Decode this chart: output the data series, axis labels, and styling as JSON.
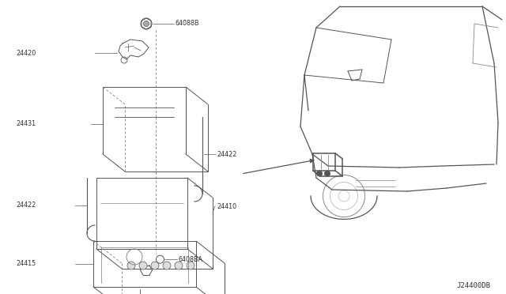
{
  "bg_color": "#ffffff",
  "line_color": "#555555",
  "text_color": "#333333",
  "fig_width": 6.4,
  "fig_height": 3.72,
  "dpi": 100,
  "diagram_code_label": "J24400DB",
  "font_size": 5.8,
  "font_size_code": 6.5
}
